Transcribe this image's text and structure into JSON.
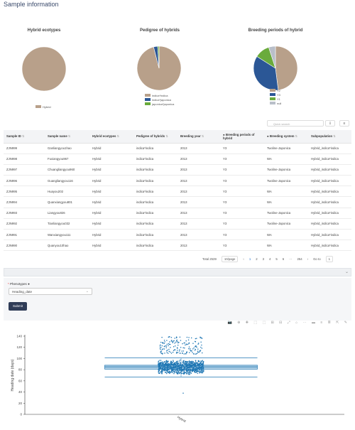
{
  "page": {
    "title": "Sample information"
  },
  "pies": [
    {
      "title": "Hybrid ecotypes",
      "legend": [
        {
          "label": "Hybrid",
          "color": "#b8a08a"
        }
      ],
      "slices": [
        {
          "label": "Hybrid",
          "value": 100,
          "color": "#b8a08a"
        }
      ]
    },
    {
      "title": "Pedigree of hybrids",
      "legend": [
        {
          "label": "indica*indica",
          "color": "#b8a08a"
        },
        {
          "label": "indica*japonica",
          "color": "#2b5796"
        },
        {
          "label": "japonica*japonica",
          "color": "#6aab3c"
        }
      ],
      "slices": [
        {
          "label": "indica*indica",
          "value": 96,
          "color": "#b8a08a"
        },
        {
          "label": "indica*japonica",
          "value": 3,
          "color": "#2b5796"
        },
        {
          "label": "japonica*japonica",
          "value": 1,
          "color": "#6aab3c"
        }
      ]
    },
    {
      "title": "Breeding periods of hybrid",
      "legend": [
        {
          "label": "Y2",
          "color": "#b8a08a"
        },
        {
          "label": "Y3",
          "color": "#2b5796"
        },
        {
          "label": "Y1",
          "color": "#6aab3c"
        },
        {
          "label": "null",
          "color": "#b9bfc9"
        }
      ],
      "slices": [
        {
          "label": "Y2",
          "value": 48,
          "color": "#b8a08a"
        },
        {
          "label": "Y3",
          "value": 36,
          "color": "#2b5796"
        },
        {
          "label": "Y1",
          "value": 11,
          "color": "#6aab3c"
        },
        {
          "label": "null",
          "value": 5,
          "color": "#b9bfc9"
        }
      ]
    }
  ],
  "toolbar": {
    "search_placeholder": "Quick search"
  },
  "table": {
    "headers": [
      "Sample ID",
      "Sample name",
      "Hybrid ecotypes",
      "Pedigree of hybrids",
      "Breeding year",
      "Breeding periods of hybrid",
      "Breeding system",
      "Subpopulation"
    ],
    "rows": [
      [
        "ZJN999",
        "Ganliangyou1hao",
        "Hybrid",
        "indica*indica",
        "2013",
        "Y3",
        "Twoline-Japonica",
        "Hybrid_indica*indica"
      ],
      [
        "ZJN998",
        "Fuxiangyou967",
        "Hybrid",
        "indica*indica",
        "2013",
        "Y3",
        "WA",
        "Hybrid_indica*indica"
      ],
      [
        "ZJN997",
        "Chuangliangyou960",
        "Hybrid",
        "indica*indica",
        "2013",
        "Y3",
        "Twoline-Japonica",
        "Hybrid_indica*indica"
      ],
      [
        "ZJN996",
        "Guangliangyou116",
        "Hybrid",
        "indica*indica",
        "2013",
        "Y3",
        "Twoline-Japonica",
        "Hybrid_indica*indica"
      ],
      [
        "ZJN995",
        "Huayou202",
        "Hybrid",
        "indica*indica",
        "2013",
        "Y3",
        "WA",
        "Hybrid_indica*indica"
      ],
      [
        "ZJN994",
        "Quanxiangyou801",
        "Hybrid",
        "indica*indica",
        "2013",
        "Y3",
        "WA",
        "Hybrid_indica*indica"
      ],
      [
        "ZJN993",
        "Liangyou826",
        "Hybrid",
        "indica*indica",
        "2013",
        "Y3",
        "Twoline-Japonica",
        "Hybrid_indica*indica"
      ],
      [
        "ZJN992",
        "Tianliangyou032",
        "Hybrid",
        "indica*indica",
        "2013",
        "Y3",
        "Twoline-Japonica",
        "Hybrid_indica*indica"
      ],
      [
        "ZJN991",
        "Wanxiangyou111",
        "Hybrid",
        "indica*indica",
        "2013",
        "Y3",
        "WA",
        "Hybrid_indica*indica"
      ],
      [
        "ZJN990",
        "Quanyou10hao",
        "Hybrid",
        "indica*indica",
        "2013",
        "Y3",
        "WA",
        "Hybrid_indica*indica"
      ]
    ]
  },
  "pager": {
    "total": "Total 2539",
    "page_size": "10/page",
    "prev": "‹",
    "pages": [
      "1",
      "2",
      "3",
      "4",
      "5",
      "6",
      "···",
      "254"
    ],
    "next": "›",
    "goto_label": "Go to",
    "goto_value": "1"
  },
  "form": {
    "phenotypes_label": "Phenotypes",
    "phenotype_value": "Heading_date",
    "submit_label": "Submit"
  },
  "chart_data": {
    "type": "scatter",
    "ylabel": "Heading date (days)",
    "ylim": [
      0,
      140
    ],
    "yticks": [
      0,
      20,
      40,
      60,
      80,
      100,
      120,
      140
    ],
    "categories": [
      "Hybrid"
    ],
    "box": {
      "min": 67,
      "q1": 81,
      "median": 85,
      "q3": 88,
      "max": 101
    },
    "outliers_high_range": [
      108,
      140
    ],
    "outliers_low": [
      38
    ],
    "point_color": "#1f77b4"
  }
}
